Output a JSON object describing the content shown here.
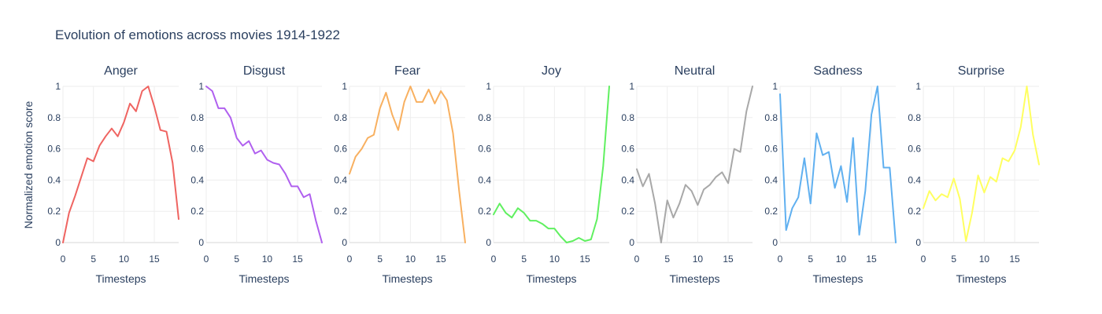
{
  "chart_data": {
    "type": "line",
    "title": "Evolution of emotions across movies 1914-1922",
    "ylabel": "Normalized emotion score",
    "xlabel": "Timesteps",
    "x": [
      0,
      1,
      2,
      3,
      4,
      5,
      6,
      7,
      8,
      9,
      10,
      11,
      12,
      13,
      14,
      15,
      16,
      17,
      18,
      19
    ],
    "xlim": [
      0,
      19
    ],
    "ylim": [
      0,
      1
    ],
    "x_ticks": [
      0,
      5,
      10,
      15
    ],
    "y_ticks": [
      0,
      0.2,
      0.4,
      0.6,
      0.8,
      1
    ],
    "y_tick_labels": [
      "0",
      "0.2",
      "0.4",
      "0.6",
      "0.8",
      "1"
    ],
    "grid": true,
    "series": [
      {
        "name": "Anger",
        "color": "#EF6461",
        "values": [
          0,
          0.19,
          0.3,
          0.42,
          0.54,
          0.52,
          0.62,
          0.68,
          0.73,
          0.68,
          0.77,
          0.89,
          0.84,
          0.97,
          1.0,
          0.87,
          0.72,
          0.71,
          0.51,
          0.15
        ]
      },
      {
        "name": "Disgust",
        "color": "#B060EF",
        "values": [
          1.0,
          0.97,
          0.86,
          0.86,
          0.8,
          0.67,
          0.62,
          0.65,
          0.57,
          0.59,
          0.53,
          0.51,
          0.5,
          0.44,
          0.36,
          0.36,
          0.29,
          0.31,
          0.14,
          0.0
        ]
      },
      {
        "name": "Fear",
        "color": "#F8B060",
        "values": [
          0.44,
          0.55,
          0.6,
          0.67,
          0.69,
          0.86,
          0.96,
          0.82,
          0.72,
          0.9,
          1.0,
          0.9,
          0.9,
          0.98,
          0.89,
          0.97,
          0.91,
          0.7,
          0.33,
          0.0
        ]
      },
      {
        "name": "Joy",
        "color": "#60F060",
        "values": [
          0.18,
          0.25,
          0.19,
          0.16,
          0.22,
          0.19,
          0.14,
          0.14,
          0.12,
          0.09,
          0.09,
          0.04,
          0.0,
          0.01,
          0.03,
          0.01,
          0.02,
          0.15,
          0.49,
          1.0
        ]
      },
      {
        "name": "Neutral",
        "color": "#A8A8A8",
        "values": [
          0.47,
          0.36,
          0.44,
          0.25,
          0.0,
          0.27,
          0.16,
          0.25,
          0.37,
          0.33,
          0.24,
          0.34,
          0.37,
          0.42,
          0.45,
          0.38,
          0.6,
          0.58,
          0.84,
          1.0
        ]
      },
      {
        "name": "Sadness",
        "color": "#60B0F0",
        "values": [
          0.95,
          0.08,
          0.22,
          0.29,
          0.54,
          0.25,
          0.7,
          0.56,
          0.58,
          0.35,
          0.49,
          0.26,
          0.67,
          0.05,
          0.33,
          0.82,
          1.0,
          0.48,
          0.48,
          0.0
        ]
      },
      {
        "name": "Surprise",
        "color": "#FFFF60",
        "values": [
          0.22,
          0.33,
          0.27,
          0.31,
          0.29,
          0.41,
          0.28,
          0.01,
          0.19,
          0.43,
          0.32,
          0.42,
          0.39,
          0.54,
          0.52,
          0.59,
          0.74,
          1.0,
          0.69,
          0.5
        ]
      }
    ]
  }
}
